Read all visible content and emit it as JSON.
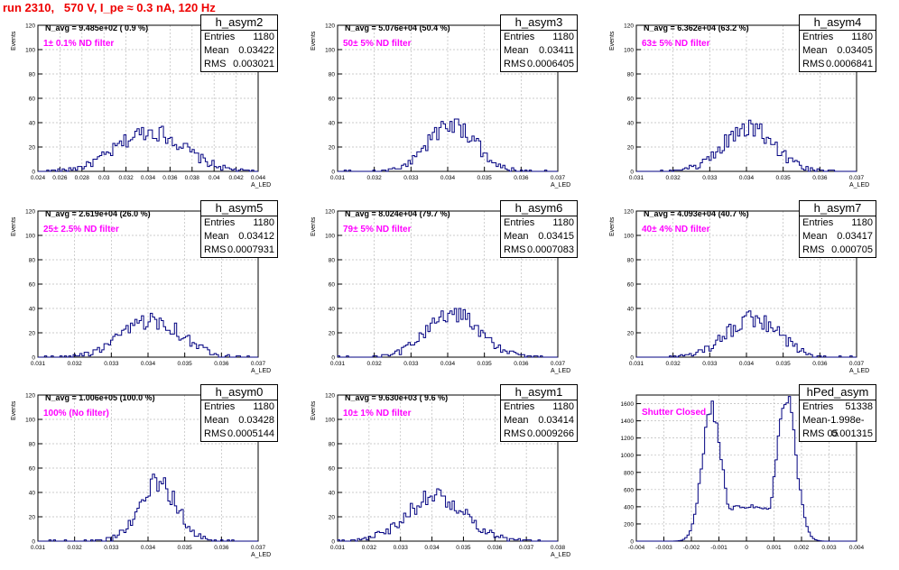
{
  "page_title": "run 2310,   570 V, I_pe ≈ 0.3 nA, 120 Hz",
  "stats_labels": {
    "entries": "Entries",
    "mean": "Mean",
    "rms": "RMS"
  },
  "colors": {
    "hist_line": "#000080",
    "title_red": "#ee0000",
    "filter_magenta": "#ff00ff",
    "grid": "#bbbbbb"
  },
  "chart_data": [
    {
      "type": "bar",
      "name": "h_asym2",
      "navg_text": "N_avg = 9.485e+02 ( 0.9 %)",
      "filter_text": "1± 0.1% ND filter",
      "entries": "1180",
      "mean": "0.03422",
      "rms": "0.003021",
      "xlabel": "A_LED",
      "ylabel": "Events",
      "xlim": [
        0.024,
        0.044
      ],
      "ylim": [
        0,
        120
      ],
      "xticks": [
        "0.024",
        "0.026",
        "0.028",
        "0.03",
        "0.032",
        "0.034",
        "0.036",
        "0.038",
        "0.04",
        "0.042",
        "0.044"
      ],
      "yticks": [
        "0",
        "20",
        "40",
        "60",
        "80",
        "100",
        "120"
      ],
      "dist": {
        "mu": 0.03422,
        "sigma": 0.003021,
        "bins": 100,
        "peak": 42,
        "shape": "gauss"
      }
    },
    {
      "type": "bar",
      "name": "h_asym3",
      "navg_text": "N_avg = 5.076e+04 (50.4 %)",
      "filter_text": "50± 5% ND filter",
      "entries": "1180",
      "mean": "0.03411",
      "rms": "0.0006405",
      "xlabel": "A_LED",
      "ylabel": "Events",
      "xlim": [
        0.031,
        0.037
      ],
      "ylim": [
        0,
        120
      ],
      "xticks": [
        "0.031",
        "0.032",
        "0.033",
        "0.034",
        "0.035",
        "0.036",
        "0.037"
      ],
      "yticks": [
        "0",
        "20",
        "40",
        "60",
        "80",
        "100",
        "120"
      ],
      "dist": {
        "mu": 0.03411,
        "sigma": 0.0006405,
        "bins": 100,
        "peak": 50,
        "shape": "gauss"
      }
    },
    {
      "type": "bar",
      "name": "h_asym4",
      "navg_text": "N_avg = 6.362e+04 (63.2 %)",
      "filter_text": "63± 5% ND filter",
      "entries": "1180",
      "mean": "0.03405",
      "rms": "0.0006841",
      "xlabel": "A_LED",
      "ylabel": "Events",
      "xlim": [
        0.031,
        0.037
      ],
      "ylim": [
        0,
        120
      ],
      "xticks": [
        "0.031",
        "0.032",
        "0.033",
        "0.034",
        "0.035",
        "0.036",
        "0.037"
      ],
      "yticks": [
        "0",
        "20",
        "40",
        "60",
        "80",
        "100",
        "120"
      ],
      "dist": {
        "mu": 0.03405,
        "sigma": 0.0006841,
        "bins": 100,
        "peak": 46,
        "shape": "gauss"
      }
    },
    {
      "type": "bar",
      "name": "h_asym5",
      "navg_text": "N_avg = 2.619e+04 (26.0 %)",
      "filter_text": "25± 2.5% ND filter",
      "entries": "1180",
      "mean": "0.03412",
      "rms": "0.0007931",
      "xlabel": "A_LED",
      "ylabel": "Events",
      "xlim": [
        0.031,
        0.037
      ],
      "ylim": [
        0,
        120
      ],
      "xticks": [
        "0.031",
        "0.032",
        "0.033",
        "0.034",
        "0.035",
        "0.036",
        "0.037"
      ],
      "yticks": [
        "0",
        "20",
        "40",
        "60",
        "80",
        "100",
        "120"
      ],
      "dist": {
        "mu": 0.03412,
        "sigma": 0.0007931,
        "bins": 100,
        "peak": 40,
        "shape": "gauss"
      }
    },
    {
      "type": "bar",
      "name": "h_asym6",
      "navg_text": "N_avg = 8.024e+04 (79.7 %)",
      "filter_text": "79± 5% ND filter",
      "entries": "1180",
      "mean": "0.03415",
      "rms": "0.0007083",
      "xlabel": "A_LED",
      "ylabel": "Events",
      "xlim": [
        0.031,
        0.037
      ],
      "ylim": [
        0,
        120
      ],
      "xticks": [
        "0.031",
        "0.032",
        "0.033",
        "0.034",
        "0.035",
        "0.036",
        "0.037"
      ],
      "yticks": [
        "0",
        "20",
        "40",
        "60",
        "80",
        "100",
        "120"
      ],
      "dist": {
        "mu": 0.03415,
        "sigma": 0.0007083,
        "bins": 100,
        "peak": 48,
        "shape": "gauss"
      }
    },
    {
      "type": "bar",
      "name": "h_asym7",
      "navg_text": "N_avg = 4.093e+04 (40.7 %)",
      "filter_text": "40± 4% ND filter",
      "entries": "1180",
      "mean": "0.03417",
      "rms": "0.000705",
      "xlabel": "A_LED",
      "ylabel": "Events",
      "xlim": [
        0.031,
        0.037
      ],
      "ylim": [
        0,
        120
      ],
      "xticks": [
        "0.031",
        "0.032",
        "0.033",
        "0.034",
        "0.035",
        "0.036",
        "0.037"
      ],
      "yticks": [
        "0",
        "20",
        "40",
        "60",
        "80",
        "100",
        "120"
      ],
      "dist": {
        "mu": 0.03417,
        "sigma": 0.000705,
        "bins": 100,
        "peak": 41,
        "shape": "gauss"
      }
    },
    {
      "type": "bar",
      "name": "h_asym0",
      "navg_text": "N_avg = 1.006e+05 (100.0 %)",
      "filter_text": "100% (No filter)",
      "entries": "1180",
      "mean": "0.03428",
      "rms": "0.0005144",
      "xlabel": "A_LED",
      "ylabel": "Events",
      "xlim": [
        0.031,
        0.037
      ],
      "ylim": [
        0,
        120
      ],
      "xticks": [
        "0.031",
        "0.032",
        "0.033",
        "0.034",
        "0.035",
        "0.036",
        "0.037"
      ],
      "yticks": [
        "0",
        "20",
        "40",
        "60",
        "80",
        "100",
        "120"
      ],
      "dist": {
        "mu": 0.03428,
        "sigma": 0.0005144,
        "bins": 100,
        "peak": 61,
        "shape": "gauss"
      }
    },
    {
      "type": "bar",
      "name": "h_asym1",
      "navg_text": "N_avg = 9.630e+03 ( 9.6 %)",
      "filter_text": "10± 1% ND filter",
      "entries": "1180",
      "mean": "0.03414",
      "rms": "0.0009266",
      "xlabel": "A_LED",
      "ylabel": "Events",
      "xlim": [
        0.031,
        0.038
      ],
      "ylim": [
        0,
        120
      ],
      "xticks": [
        "0.031",
        "0.032",
        "0.033",
        "0.034",
        "0.035",
        "0.036",
        "0.037",
        "0.038"
      ],
      "yticks": [
        "0",
        "20",
        "40",
        "60",
        "80",
        "100",
        "120"
      ],
      "dist": {
        "mu": 0.03414,
        "sigma": 0.0009266,
        "bins": 100,
        "peak": 47,
        "shape": "gauss"
      }
    },
    {
      "type": "bar",
      "name": "hPed_asym",
      "navg_text": "",
      "filter_text": "Shutter Closed",
      "entries": "51338",
      "mean": "-1.998e-05",
      "rms": "0.001315",
      "xlabel": "",
      "ylabel": "",
      "xlim": [
        -0.004,
        0.004
      ],
      "ylim": [
        0,
        1700
      ],
      "xticks": [
        "-0.004",
        "-0.003",
        "-0.002",
        "-0.001",
        "0",
        "0.001",
        "0.002",
        "0.003",
        "0.004"
      ],
      "yticks": [
        "0",
        "200",
        "400",
        "600",
        "800",
        "1000",
        "1200",
        "1400",
        "1600"
      ],
      "dist": {
        "mu": -1.998e-05,
        "sigma": 0.001315,
        "bins": 100,
        "peak": 1660,
        "shape": "bimodal",
        "peaks": [
          -0.00125,
          0.00145
        ],
        "width": 0.00035,
        "dip": 400
      }
    }
  ]
}
